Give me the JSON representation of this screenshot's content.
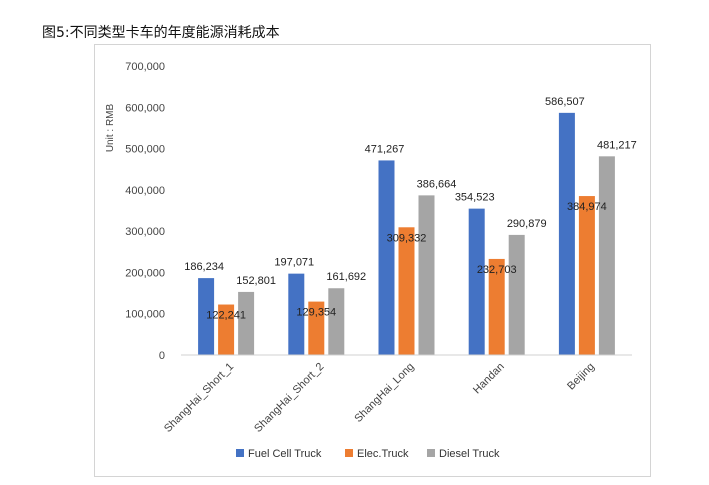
{
  "page": {
    "title": "图5:不同类型卡车的年度能源消耗成本"
  },
  "chart_data": {
    "type": "bar",
    "title": "",
    "ylabel": "Unit : RMB",
    "xlabel": "",
    "categories": [
      "ShangHai_Short_1",
      "ShangHai_Short_2",
      "ShangHai_Long",
      "Handan",
      "Beijing"
    ],
    "series": [
      {
        "name": "Fuel Cell Truck",
        "color": "#4472C4",
        "values": [
          186234,
          197071,
          471267,
          354523,
          586507
        ],
        "labels": [
          "186,234",
          "197,071",
          "471,267",
          "354,523",
          "586,507"
        ]
      },
      {
        "name": "Elec.Truck",
        "color": "#ED7D31",
        "values": [
          122241,
          129354,
          309332,
          232703,
          384974
        ],
        "labels": [
          "122,241",
          "129,354",
          "309,332",
          "232,703",
          "384,974"
        ]
      },
      {
        "name": "Diesel Truck",
        "color": "#A5A5A5",
        "values": [
          152801,
          161692,
          386664,
          290879,
          481217
        ],
        "labels": [
          "152,801",
          "161,692",
          "386,664",
          "290,879",
          "481,217"
        ]
      }
    ],
    "ylim": [
      0,
      700000
    ],
    "yticks": [
      0,
      100000,
      200000,
      300000,
      400000,
      500000,
      600000,
      700000
    ],
    "ytick_labels": [
      "0",
      "100,000",
      "200,000",
      "300,000",
      "400,000",
      "500,000",
      "600,000",
      "700,000"
    ],
    "grid": false,
    "legend_position": "bottom"
  }
}
